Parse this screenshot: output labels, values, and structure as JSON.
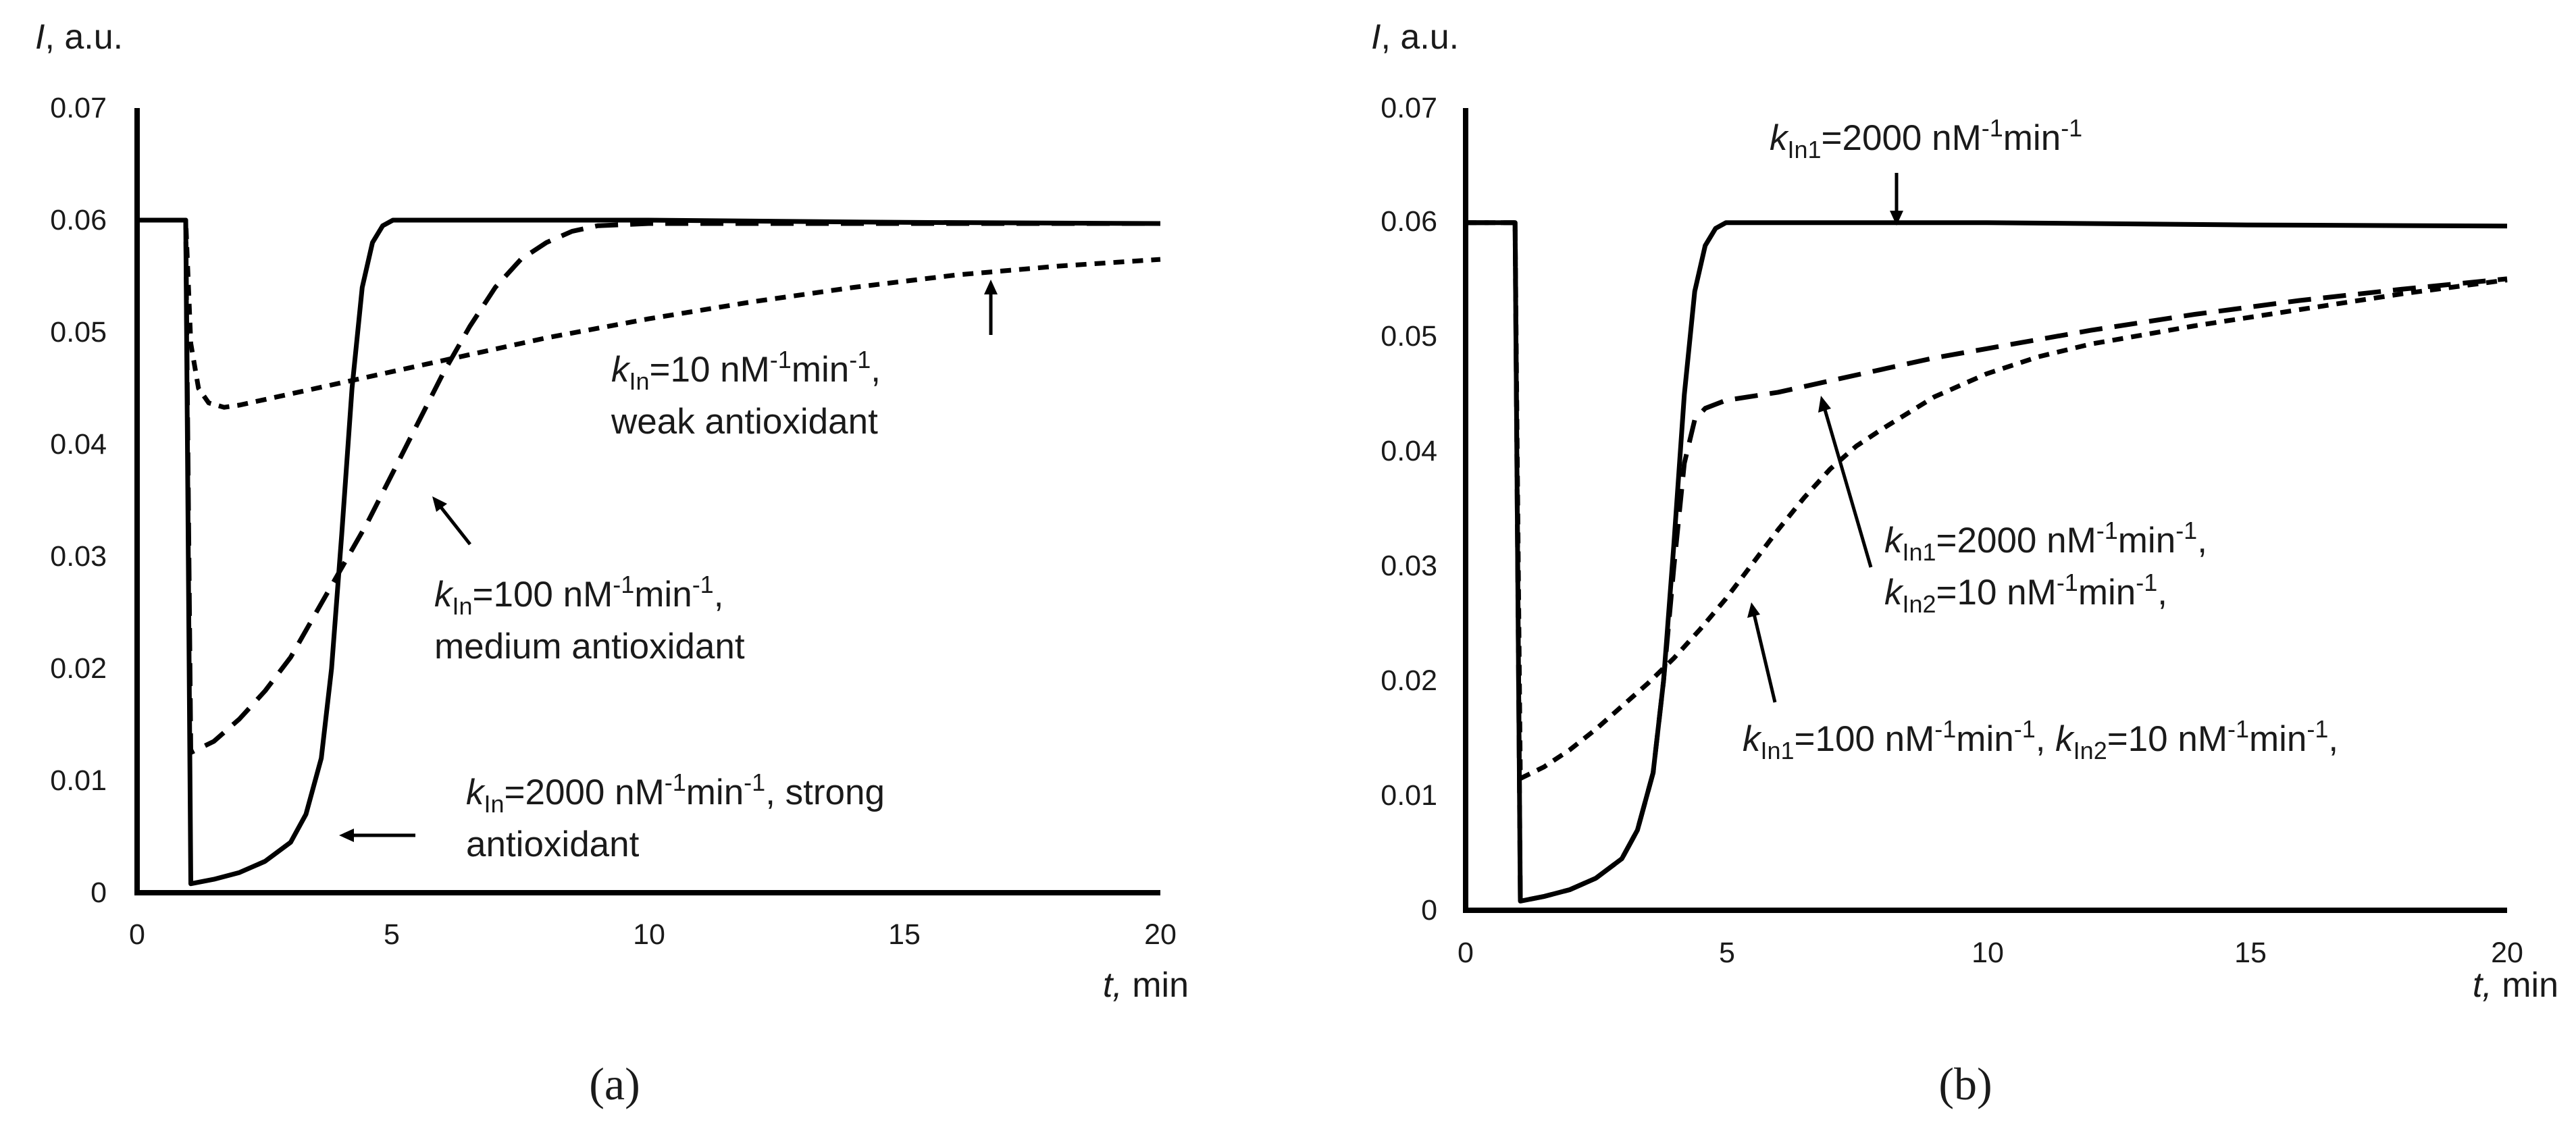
{
  "chart_data": [
    {
      "type": "line",
      "panel_label": "(a)",
      "ylabel_var": "I",
      "ylabel_unit": ", a.u.",
      "xlabel_var": "t,",
      "xlabel_unit": " min",
      "xlim": [
        0,
        20
      ],
      "ylim": [
        0,
        0.07
      ],
      "x_ticks": [
        "0",
        "5",
        "10",
        "15",
        "20"
      ],
      "y_ticks": [
        "0",
        "0.01",
        "0.02",
        "0.03",
        "0.04",
        "0.05",
        "0.06",
        "0.07"
      ],
      "grid": false,
      "series": [
        {
          "name": "kIn=2000 nM-1min-1, strong antioxidant",
          "style": "solid",
          "x": [
            0,
            0.95,
            1.0,
            1.05,
            1.5,
            2.0,
            2.5,
            3.0,
            3.3,
            3.6,
            3.8,
            4.0,
            4.2,
            4.4,
            4.6,
            4.8,
            5.0,
            5.5,
            6.0,
            10,
            15,
            20
          ],
          "y": [
            0.06,
            0.06,
            0.03,
            0.0008,
            0.0012,
            0.0018,
            0.0028,
            0.0045,
            0.007,
            0.012,
            0.02,
            0.032,
            0.045,
            0.054,
            0.058,
            0.0595,
            0.06,
            0.06,
            0.06,
            0.06,
            0.0598,
            0.0597
          ]
        },
        {
          "name": "kIn=100 nM-1min-1, medium antioxidant",
          "style": "dashed",
          "x": [
            0,
            0.95,
            1.05,
            1.5,
            2.0,
            2.5,
            3.0,
            3.5,
            4.0,
            4.5,
            5.0,
            5.5,
            6.0,
            6.5,
            7.0,
            7.5,
            8.0,
            8.5,
            9.0,
            10,
            12,
            15,
            20
          ],
          "y": [
            0.06,
            0.06,
            0.0125,
            0.0135,
            0.0155,
            0.018,
            0.021,
            0.025,
            0.029,
            0.033,
            0.0375,
            0.042,
            0.0465,
            0.0505,
            0.054,
            0.0565,
            0.058,
            0.059,
            0.0595,
            0.0597,
            0.0597,
            0.0597,
            0.0597
          ]
        },
        {
          "name": "kIn=10 nM-1min-1, weak antioxidant",
          "style": "dotted",
          "x": [
            0,
            0.95,
            1.05,
            1.2,
            1.4,
            1.7,
            2.0,
            3.0,
            4.0,
            5.0,
            6.0,
            8.0,
            10,
            12,
            14,
            16,
            18,
            20
          ],
          "y": [
            0.06,
            0.06,
            0.049,
            0.045,
            0.0437,
            0.0433,
            0.0435,
            0.0445,
            0.0455,
            0.0465,
            0.0475,
            0.0495,
            0.0512,
            0.0527,
            0.054,
            0.0551,
            0.0559,
            0.0565
          ]
        }
      ],
      "annotations": [
        {
          "var": "k",
          "sub": "In",
          "text": "=10 nM",
          "sup": "-1",
          "text2": "min",
          "sup2": "-1",
          "tail": ",",
          "line2": "weak antioxidant"
        },
        {
          "var": "k",
          "sub": "In",
          "text": "=100 nM",
          "sup": "-1",
          "text2": "min",
          "sup2": "-1",
          "tail": ",",
          "line2": "medium antioxidant"
        },
        {
          "var": "k",
          "sub": "In",
          "text": "=2000 nM",
          "sup": "-1",
          "text2": "min",
          "sup2": "-1",
          "tail": ", strong",
          "line2": "antioxidant"
        }
      ]
    },
    {
      "type": "line",
      "panel_label": "(b)",
      "ylabel_var": "I",
      "ylabel_unit": ", a.u.",
      "xlabel_var": "t,",
      "xlabel_unit": " min",
      "xlim": [
        0,
        20
      ],
      "ylim": [
        0,
        0.07
      ],
      "x_ticks": [
        "0",
        "5",
        "10",
        "15",
        "20"
      ],
      "y_ticks": [
        "0",
        "0.01",
        "0.02",
        "0.03",
        "0.04",
        "0.05",
        "0.06",
        "0.07"
      ],
      "grid": false,
      "series": [
        {
          "name": "kIn1=2000 nM-1min-1",
          "style": "solid",
          "x": [
            0,
            0.95,
            1.0,
            1.05,
            1.5,
            2.0,
            2.5,
            3.0,
            3.3,
            3.6,
            3.8,
            4.0,
            4.2,
            4.4,
            4.6,
            4.8,
            5.0,
            5.5,
            6.0,
            10,
            15,
            20
          ],
          "y": [
            0.06,
            0.06,
            0.03,
            0.0008,
            0.0012,
            0.0018,
            0.0028,
            0.0045,
            0.007,
            0.012,
            0.02,
            0.032,
            0.045,
            0.054,
            0.058,
            0.0595,
            0.06,
            0.06,
            0.06,
            0.06,
            0.0598,
            0.0597
          ]
        },
        {
          "name": "kIn1=2000 nM-1min-1, kIn2=10 nM-1min-1",
          "style": "dashed",
          "x": [
            0,
            0.95,
            1.0,
            1.05,
            1.5,
            2.0,
            2.5,
            3.0,
            3.3,
            3.6,
            3.8,
            4.0,
            4.2,
            4.4,
            4.6,
            5.0,
            6.0,
            7.0,
            8.0,
            9.0,
            10,
            12,
            14,
            16,
            18,
            20
          ],
          "y": [
            0.06,
            0.06,
            0.03,
            0.0008,
            0.0012,
            0.0018,
            0.0028,
            0.0045,
            0.007,
            0.012,
            0.02,
            0.03,
            0.039,
            0.0428,
            0.0438,
            0.0445,
            0.0452,
            0.0462,
            0.0472,
            0.0482,
            0.049,
            0.0506,
            0.052,
            0.0532,
            0.0542,
            0.0551
          ]
        },
        {
          "name": "kIn1=100 nM-1min-1, kIn2=10 nM-1min-1",
          "style": "dotted",
          "x": [
            0,
            0.95,
            1.05,
            1.5,
            2.0,
            2.5,
            3.0,
            3.5,
            4.0,
            4.5,
            5.0,
            5.5,
            6.0,
            6.5,
            7.0,
            7.5,
            8.0,
            9.0,
            10,
            11,
            12,
            14,
            16,
            18,
            20
          ],
          "y": [
            0.06,
            0.06,
            0.0115,
            0.0125,
            0.014,
            0.0158,
            0.0178,
            0.0198,
            0.022,
            0.0245,
            0.0272,
            0.0302,
            0.0332,
            0.036,
            0.0385,
            0.0405,
            0.042,
            0.0448,
            0.0468,
            0.0483,
            0.0494,
            0.051,
            0.0524,
            0.0538,
            0.055
          ]
        }
      ],
      "annotations": [
        {
          "var": "k",
          "sub": "In1",
          "text": "=2000 nM",
          "sup": "-1",
          "text2": "min",
          "sup2": "-1",
          "tail": ""
        },
        {
          "var": "k",
          "sub": "In1",
          "text": "=2000 nM",
          "sup": "-1",
          "text2": "min",
          "sup2": "-1",
          "tail": ",",
          "line2_var": "k",
          "line2_sub": "In2",
          "line2_text": "=10 nM",
          "line2_sup": "-1",
          "line2_text2": "min",
          "line2_sup2": "-1",
          "line2_tail": ","
        },
        {
          "var": "k",
          "sub": "In1",
          "text": "=100 nM",
          "sup": "-1",
          "text2": "min",
          "sup2": "-1",
          "tail": ", ",
          "var_b": "k",
          "sub_b": "In2",
          "text_b": "=10 nM",
          "sup_b": "-1",
          "text2_b": "min",
          "sup2_b": "-1",
          "tail_b": ","
        }
      ]
    }
  ]
}
